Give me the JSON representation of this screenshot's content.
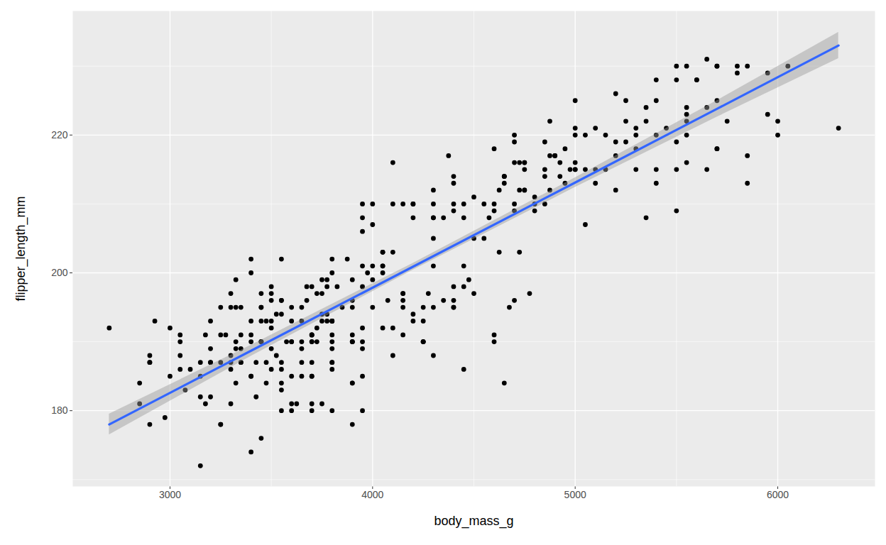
{
  "chart_data": {
    "type": "scatter",
    "x_label": "body_mass_g",
    "y_label": "flipper_length_mm",
    "xlim": [
      2520,
      6480
    ],
    "ylim": [
      169,
      238
    ],
    "xticks": [
      3000,
      4000,
      5000,
      6000
    ],
    "yticks": [
      180,
      200,
      220
    ],
    "grid": true,
    "series": [
      {
        "type": "scatter",
        "color": "black",
        "marker": "circle",
        "x": [
          3750,
          3800,
          3250,
          3450,
          3650,
          3625,
          4675,
          3475,
          4250,
          3300,
          3700,
          3200,
          3800,
          4400,
          3700,
          3450,
          4500,
          3325,
          4200,
          3400,
          3600,
          3800,
          3950,
          3800,
          3800,
          3550,
          3200,
          3150,
          3950,
          3250,
          3900,
          3300,
          3900,
          3325,
          4150,
          3950,
          3550,
          3300,
          4650,
          3150,
          3900,
          3100,
          4400,
          3000,
          4600,
          3425,
          2975,
          3450,
          4150,
          3500,
          4300,
          3450,
          4050,
          2900,
          3700,
          3550,
          3800,
          2850,
          3750,
          3150,
          4400,
          3600,
          4050,
          2850,
          3950,
          3350,
          4100,
          3050,
          4450,
          3600,
          3900,
          3550,
          4150,
          3700,
          4250,
          3700,
          3900,
          3550,
          4000,
          3200,
          4700,
          3800,
          4200,
          3350,
          3550,
          3800,
          3500,
          3950,
          3600,
          3550,
          4300,
          3400,
          4450,
          3300,
          4300,
          3700,
          4350,
          2900,
          4100,
          3725,
          4725,
          3075,
          4250,
          2925,
          3550,
          3750,
          3900,
          3175,
          4775,
          3825,
          4600,
          3200,
          4275,
          3900,
          4075,
          2900,
          3775,
          3350,
          3325,
          3150,
          3500,
          3450,
          3875,
          3050,
          4000,
          3275,
          4300,
          3050,
          4000,
          3325,
          3500,
          3500,
          4475,
          3425,
          3900,
          3175,
          3975,
          3400,
          4250,
          3400,
          3475,
          3050,
          3725,
          3000,
          3650,
          4250,
          3475,
          3450,
          3750,
          3700,
          4000,
          3500,
          3900,
          3650,
          3525,
          3725,
          3950,
          3250,
          3750,
          4150,
          3700,
          3800,
          3775,
          3700,
          4050,
          3575,
          4050,
          3300,
          3700,
          3450,
          4400,
          3600,
          3400,
          2900,
          3800,
          3300,
          4150,
          3400,
          3800,
          3700,
          4550,
          3200,
          4300,
          3350,
          4100,
          3600,
          3900,
          3850,
          4800,
          2700,
          4500,
          3950,
          3650,
          3550,
          3500,
          3675,
          4450,
          3400,
          4300,
          3250,
          3675,
          3325,
          3950,
          3600,
          4050,
          3350,
          3450,
          3250,
          4050,
          3800,
          3525,
          3950,
          3650,
          3650,
          4000,
          3400,
          3775,
          4100,
          3775,
          4500,
          5700,
          4450,
          5700,
          5400,
          4550,
          4800,
          5200,
          4400,
          5150,
          4650,
          5550,
          4650,
          5850,
          4200,
          5850,
          4150,
          6300,
          4800,
          5350,
          5700,
          5000,
          4400,
          5050,
          5000,
          5100,
          4100,
          5650,
          4600,
          5550,
          5250,
          4700,
          5050,
          6050,
          5150,
          5400,
          4950,
          5250,
          4350,
          5350,
          3950,
          5700,
          4300,
          4750,
          5550,
          4900,
          4200,
          5400,
          5100,
          5300,
          4850,
          5300,
          4400,
          5000,
          4900,
          5050,
          4300,
          5000,
          4450,
          5550,
          4200,
          5300,
          4400,
          5650,
          4700,
          5700,
          4650,
          5800,
          4700,
          5550,
          4750,
          5000,
          5100,
          5200,
          4700,
          5800,
          4600,
          6000,
          4750,
          5950,
          4625,
          5450,
          4725,
          5350,
          4750,
          5600,
          4600,
          5300,
          4875,
          5550,
          4950,
          5400,
          4750,
          5650,
          4850,
          5200,
          4925,
          4875,
          4625,
          5250,
          4850,
          5600,
          4975,
          5500,
          4725,
          5500,
          4700,
          5500,
          4575,
          5500,
          5000,
          5950,
          4650,
          5500,
          4375,
          5850,
          4875,
          6000,
          4925,
          4850,
          5750,
          5200,
          5400
        ],
        "values": [
          181,
          186,
          195,
          193,
          190,
          181,
          195,
          193,
          190,
          186,
          180,
          182,
          191,
          198,
          185,
          195,
          197,
          184,
          194,
          174,
          180,
          189,
          185,
          180,
          187,
          183,
          187,
          172,
          180,
          178,
          178,
          188,
          184,
          195,
          196,
          190,
          180,
          181,
          184,
          182,
          195,
          186,
          196,
          185,
          190,
          182,
          179,
          190,
          191,
          186,
          188,
          190,
          200,
          187,
          191,
          186,
          193,
          181,
          194,
          185,
          195,
          185,
          192,
          184,
          192,
          195,
          188,
          190,
          198,
          190,
          190,
          196,
          197,
          190,
          195,
          191,
          184,
          187,
          195,
          189,
          196,
          187,
          193,
          191,
          194,
          190,
          189,
          189,
          190,
          202,
          205,
          185,
          186,
          187,
          208,
          190,
          196,
          178,
          192,
          192,
          203,
          183,
          190,
          193,
          184,
          199,
          190,
          181,
          197,
          198,
          191,
          193,
          197,
          191,
          196,
          188,
          199,
          189,
          189,
          187,
          198,
          176,
          202,
          186,
          199,
          191,
          195,
          191,
          210,
          190,
          197,
          193,
          199,
          187,
          190,
          191,
          200,
          185,
          193,
          193,
          187,
          188,
          190,
          192,
          185,
          190,
          184,
          195,
          193,
          187,
          201,
          192,
          196,
          193,
          188,
          197,
          198,
          178,
          197,
          195,
          198,
          193,
          194,
          185,
          201,
          190,
          201,
          197,
          181,
          190,
          195,
          181,
          191,
          187,
          193,
          195,
          197,
          200,
          200,
          191,
          205,
          187,
          201,
          187,
          203,
          195,
          199,
          195,
          210,
          192,
          205,
          210,
          187,
          196,
          196,
          196,
          201,
          190,
          212,
          187,
          198,
          199,
          201,
          193,
          203,
          187,
          197,
          191,
          203,
          202,
          194,
          206,
          189,
          195,
          207,
          202,
          193,
          210,
          198,
          211,
          230,
          210,
          218,
          215,
          210,
          211,
          219,
          209,
          215,
          214,
          216,
          214,
          213,
          210,
          217,
          210,
          221,
          209,
          222,
          218,
          215,
          213,
          215,
          215,
          215,
          216,
          215,
          210,
          220,
          222,
          209,
          207,
          230,
          220,
          220,
          213,
          219,
          208,
          208,
          208,
          225,
          210,
          216,
          222,
          217,
          210,
          225,
          213,
          215,
          210,
          220,
          210,
          225,
          217,
          220,
          208,
          220,
          208,
          224,
          208,
          221,
          214,
          231,
          219,
          230,
          214,
          229,
          220,
          223,
          216,
          221,
          221,
          217,
          216,
          230,
          209,
          220,
          215,
          223,
          212,
          221,
          212,
          224,
          212,
          228,
          218,
          218,
          212,
          230,
          218,
          228,
          212,
          224,
          214,
          226,
          216,
          222,
          203,
          225,
          219,
          228,
          215,
          228,
          216,
          215,
          210,
          219,
          208,
          209,
          216,
          229,
          213,
          230,
          217,
          230,
          217,
          222,
          214,
          215,
          222,
          212,
          213
        ]
      },
      {
        "type": "line",
        "color": "#3366FF",
        "line_style": "solid",
        "x": [
          2700,
          3400,
          4200,
          5000,
          5700,
          6300
        ],
        "values": [
          178.0,
          188.7,
          200.9,
          213.1,
          223.8,
          233.0
        ],
        "lower": [
          176.5,
          187.9,
          200.4,
          212.4,
          222.6,
          231.1
        ],
        "upper": [
          179.5,
          189.5,
          201.4,
          213.8,
          225.0,
          234.9
        ]
      }
    ]
  }
}
